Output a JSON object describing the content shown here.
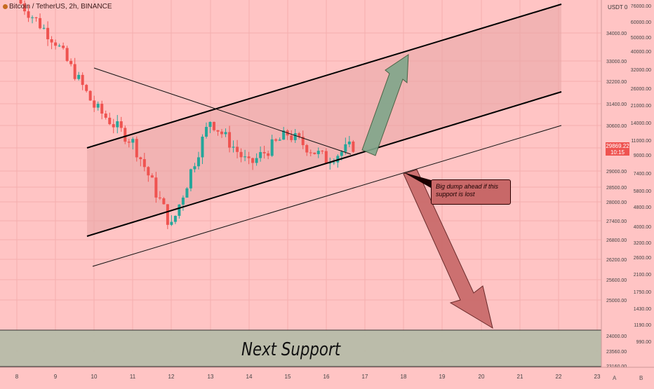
{
  "header": {
    "symbol_title": "Bitcoin / TetherUS, 2h, BINANCE"
  },
  "price_axis": {
    "unit": "USDT",
    "unit_suffix": "0",
    "left_labels": [
      "34000.00",
      "33000.00",
      "32200.00",
      "31400.00",
      "30600.00",
      "29800.00",
      "29000.00",
      "28500.00",
      "28000.00",
      "27400.00",
      "26800.00",
      "26200.00",
      "25600.00",
      "25000.00",
      "24000.00",
      "23560.00",
      "23160.00"
    ],
    "right_labels": [
      "76000.00",
      "60000.00",
      "50000.00",
      "40000.00",
      "32000.00",
      "26000.00",
      "21000.00",
      "14000.00",
      "11000.00",
      "9000.00",
      "7400.00",
      "5800.00",
      "4800.00",
      "4000.00",
      "3200.00",
      "2600.00",
      "2100.00",
      "1750.00",
      "1430.00",
      "1190.00",
      "990.00"
    ],
    "last_price": "29869.22",
    "countdown": "10:15"
  },
  "time_axis": {
    "labels": [
      "8",
      "9",
      "10",
      "11",
      "12",
      "13",
      "14",
      "15",
      "16",
      "17",
      "18",
      "19",
      "20",
      "21",
      "22",
      "23"
    ],
    "buttons": [
      "A",
      "B"
    ]
  },
  "annotations": {
    "callout_text": "Big dump ahead if this support is lost",
    "support_zone_label": "Next Support"
  },
  "colors": {
    "background": "#ffc4c4",
    "bull_candle": "#26a69a",
    "bear_candle": "#ef5350",
    "up_arrow": "#7fa68a",
    "down_arrow": "#c76868",
    "support_zone": "#b7bca9",
    "channel_fill": "#e8a6a6"
  },
  "chart_data": {
    "type": "candlestick",
    "title": "Bitcoin / TetherUS, 2h, BINANCE",
    "y_unit": "USDT",
    "x_ticks": [
      "8",
      "9",
      "10",
      "11",
      "12",
      "13",
      "14",
      "15",
      "16",
      "17",
      "18",
      "19",
      "20",
      "21",
      "22",
      "23"
    ],
    "y_ticks_left": [
      34000,
      33000,
      32200,
      31400,
      30600,
      29800,
      29000,
      28500,
      28000,
      27400,
      26800,
      26200,
      25600,
      25000,
      24000,
      23560,
      23160
    ],
    "last_price": 29869.22,
    "approx_close_path": [
      {
        "x": "8",
        "close": 35200
      },
      {
        "x": "9",
        "close": 33700
      },
      {
        "x": "10",
        "close": 31300
      },
      {
        "x": "11",
        "close": 30000
      },
      {
        "x": "12",
        "close": 27200
      },
      {
        "x": "13",
        "close": 30800
      },
      {
        "x": "14",
        "close": 29200
      },
      {
        "x": "15",
        "close": 30300
      },
      {
        "x": "16",
        "close": 29400
      },
      {
        "x": "16.7",
        "close": 29869
      }
    ],
    "grid": true
  }
}
